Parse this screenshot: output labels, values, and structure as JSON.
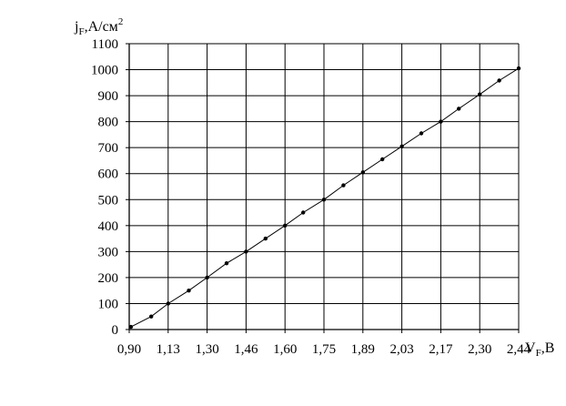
{
  "chart_data": {
    "type": "scatter",
    "xlabel": {
      "base": "V",
      "sub": "F",
      "rest": ",В"
    },
    "ylabel": {
      "base": "j",
      "sub": "F",
      "rest": ",А/см",
      "sup": "2"
    },
    "xlim": [
      0.9,
      2.44
    ],
    "ylim": [
      0,
      1100
    ],
    "x_ticks": [
      "0,90",
      "1,13",
      "1,30",
      "1,46",
      "1,60",
      "1,75",
      "1,89",
      "2,03",
      "2,17",
      "2,30",
      "2,44"
    ],
    "y_ticks": [
      "0",
      "100",
      "200",
      "300",
      "400",
      "500",
      "600",
      "700",
      "800",
      "900",
      "1000",
      "1100"
    ],
    "grid": true,
    "series": [
      {
        "points": [
          [
            0.91,
            10
          ],
          [
            1.03,
            50
          ],
          [
            1.13,
            100
          ],
          [
            1.22,
            150
          ],
          [
            1.3,
            200
          ],
          [
            1.38,
            255
          ],
          [
            1.46,
            300
          ],
          [
            1.53,
            350
          ],
          [
            1.6,
            400
          ],
          [
            1.67,
            450
          ],
          [
            1.75,
            500
          ],
          [
            1.82,
            555
          ],
          [
            1.89,
            605
          ],
          [
            1.96,
            655
          ],
          [
            2.03,
            705
          ],
          [
            2.1,
            755
          ],
          [
            2.17,
            800
          ],
          [
            2.23,
            850
          ],
          [
            2.3,
            905
          ],
          [
            2.37,
            958
          ],
          [
            2.44,
            1005
          ]
        ],
        "fit_line": true
      }
    ]
  }
}
